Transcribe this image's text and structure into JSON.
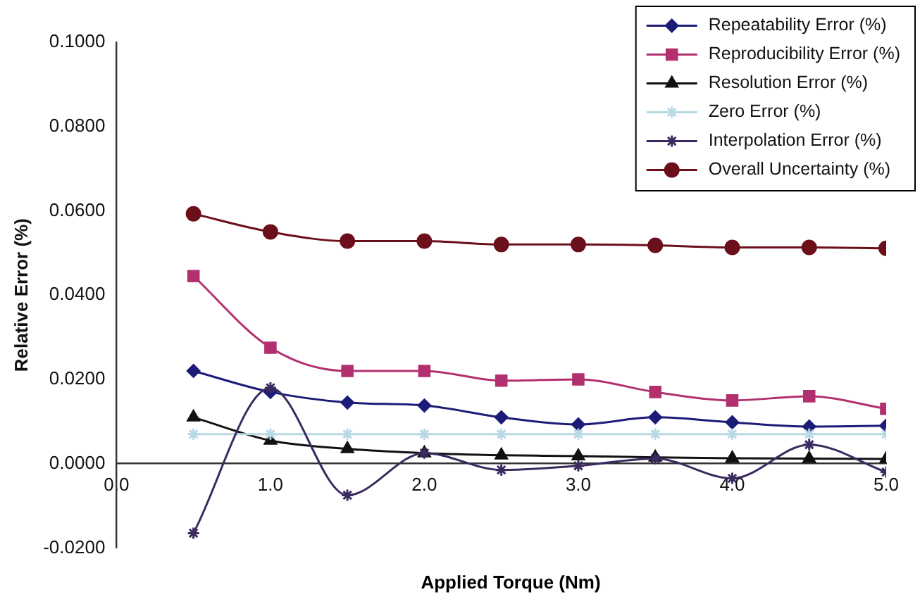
{
  "chart_data": {
    "type": "line",
    "xlabel": "Applied Torque (Nm)",
    "ylabel": "Relative Error (%)",
    "x": [
      0.5,
      1.0,
      1.5,
      2.0,
      2.5,
      3.0,
      3.5,
      4.0,
      4.5,
      5.0
    ],
    "xlim": [
      0,
      5
    ],
    "xticks": [
      {
        "value": 0,
        "label": "0.0"
      },
      {
        "value": 1,
        "label": "1.0"
      },
      {
        "value": 2,
        "label": "2.0"
      },
      {
        "value": 3,
        "label": "3.0"
      },
      {
        "value": 4,
        "label": "4.0"
      },
      {
        "value": 5,
        "label": "5.0"
      }
    ],
    "ylim": [
      -0.02,
      0.1
    ],
    "yticks": [
      {
        "value": -0.02,
        "label": "-0.0200"
      },
      {
        "value": 0,
        "label": "0.0000"
      },
      {
        "value": 0.02,
        "label": "0.0200"
      },
      {
        "value": 0.04,
        "label": "0.0400"
      },
      {
        "value": 0.06,
        "label": "0.0600"
      },
      {
        "value": 0.08,
        "label": "0.0800"
      },
      {
        "value": 0.1,
        "label": "0.1000"
      }
    ],
    "grid": false,
    "legend": "top right",
    "series": [
      {
        "name": "Repeatability Error (%)",
        "color": "#1c1c78",
        "marker": "diamond",
        "values": [
          0.022,
          0.017,
          0.0145,
          0.0138,
          0.011,
          0.0093,
          0.011,
          0.0098,
          0.0088,
          0.009
        ]
      },
      {
        "name": "Reproducibility Error (%)",
        "color": "#b2306f",
        "marker": "square",
        "values": [
          0.0445,
          0.0275,
          0.022,
          0.022,
          0.0197,
          0.02,
          0.017,
          0.015,
          0.016,
          0.013
        ]
      },
      {
        "name": "Resolution Error (%)",
        "color": "#111111",
        "marker": "triangle",
        "values": [
          0.011,
          0.0055,
          0.0035,
          0.0025,
          0.002,
          0.0018,
          0.0015,
          0.0013,
          0.0012,
          0.0011
        ]
      },
      {
        "name": "Zero Error (%)",
        "color": "#b8d8e6",
        "marker": "cross",
        "values": [
          0.007,
          0.007,
          0.007,
          0.007,
          0.007,
          0.007,
          0.007,
          0.007,
          0.007,
          0.007
        ]
      },
      {
        "name": "Interpolation Error (%)",
        "color": "#3a2a60",
        "marker": "cross",
        "values": [
          -0.0165,
          0.018,
          -0.0075,
          0.0025,
          -0.0015,
          -0.0005,
          0.0012,
          -0.0035,
          0.0045,
          -0.002
        ]
      },
      {
        "name": "Overall Uncertainty (%)",
        "color": "#6b0f1a",
        "marker": "circle",
        "values": [
          0.0593,
          0.055,
          0.0528,
          0.0528,
          0.052,
          0.052,
          0.0518,
          0.0513,
          0.0513,
          0.0511
        ]
      }
    ]
  }
}
